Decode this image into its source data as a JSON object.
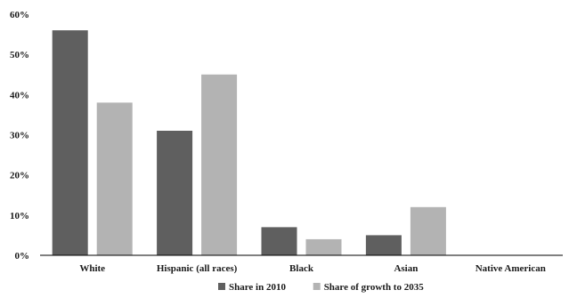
{
  "chart_data": {
    "type": "bar",
    "title": "",
    "xlabel": "",
    "ylabel": "",
    "categories": [
      "White",
      "Hispanic (all races)",
      "Black",
      "Asian",
      "Native American"
    ],
    "series": [
      {
        "name": "Share in 2010",
        "values": [
          56,
          31,
          7,
          5,
          0
        ],
        "color": "#5f5f5f"
      },
      {
        "name": "Share of growth to 2035",
        "values": [
          38,
          45,
          4,
          12,
          0
        ],
        "color": "#b3b3b3"
      }
    ],
    "ylim": [
      0,
      60
    ],
    "yticks": [
      {
        "value": 0,
        "label": "0%"
      },
      {
        "value": 10,
        "label": "10%"
      },
      {
        "value": 20,
        "label": "20%"
      },
      {
        "value": 30,
        "label": "30%"
      },
      {
        "value": 40,
        "label": "40%"
      },
      {
        "value": 50,
        "label": "50%"
      },
      {
        "value": 60,
        "label": "60%"
      }
    ],
    "grid": false,
    "legend_position": "bottom-center"
  }
}
